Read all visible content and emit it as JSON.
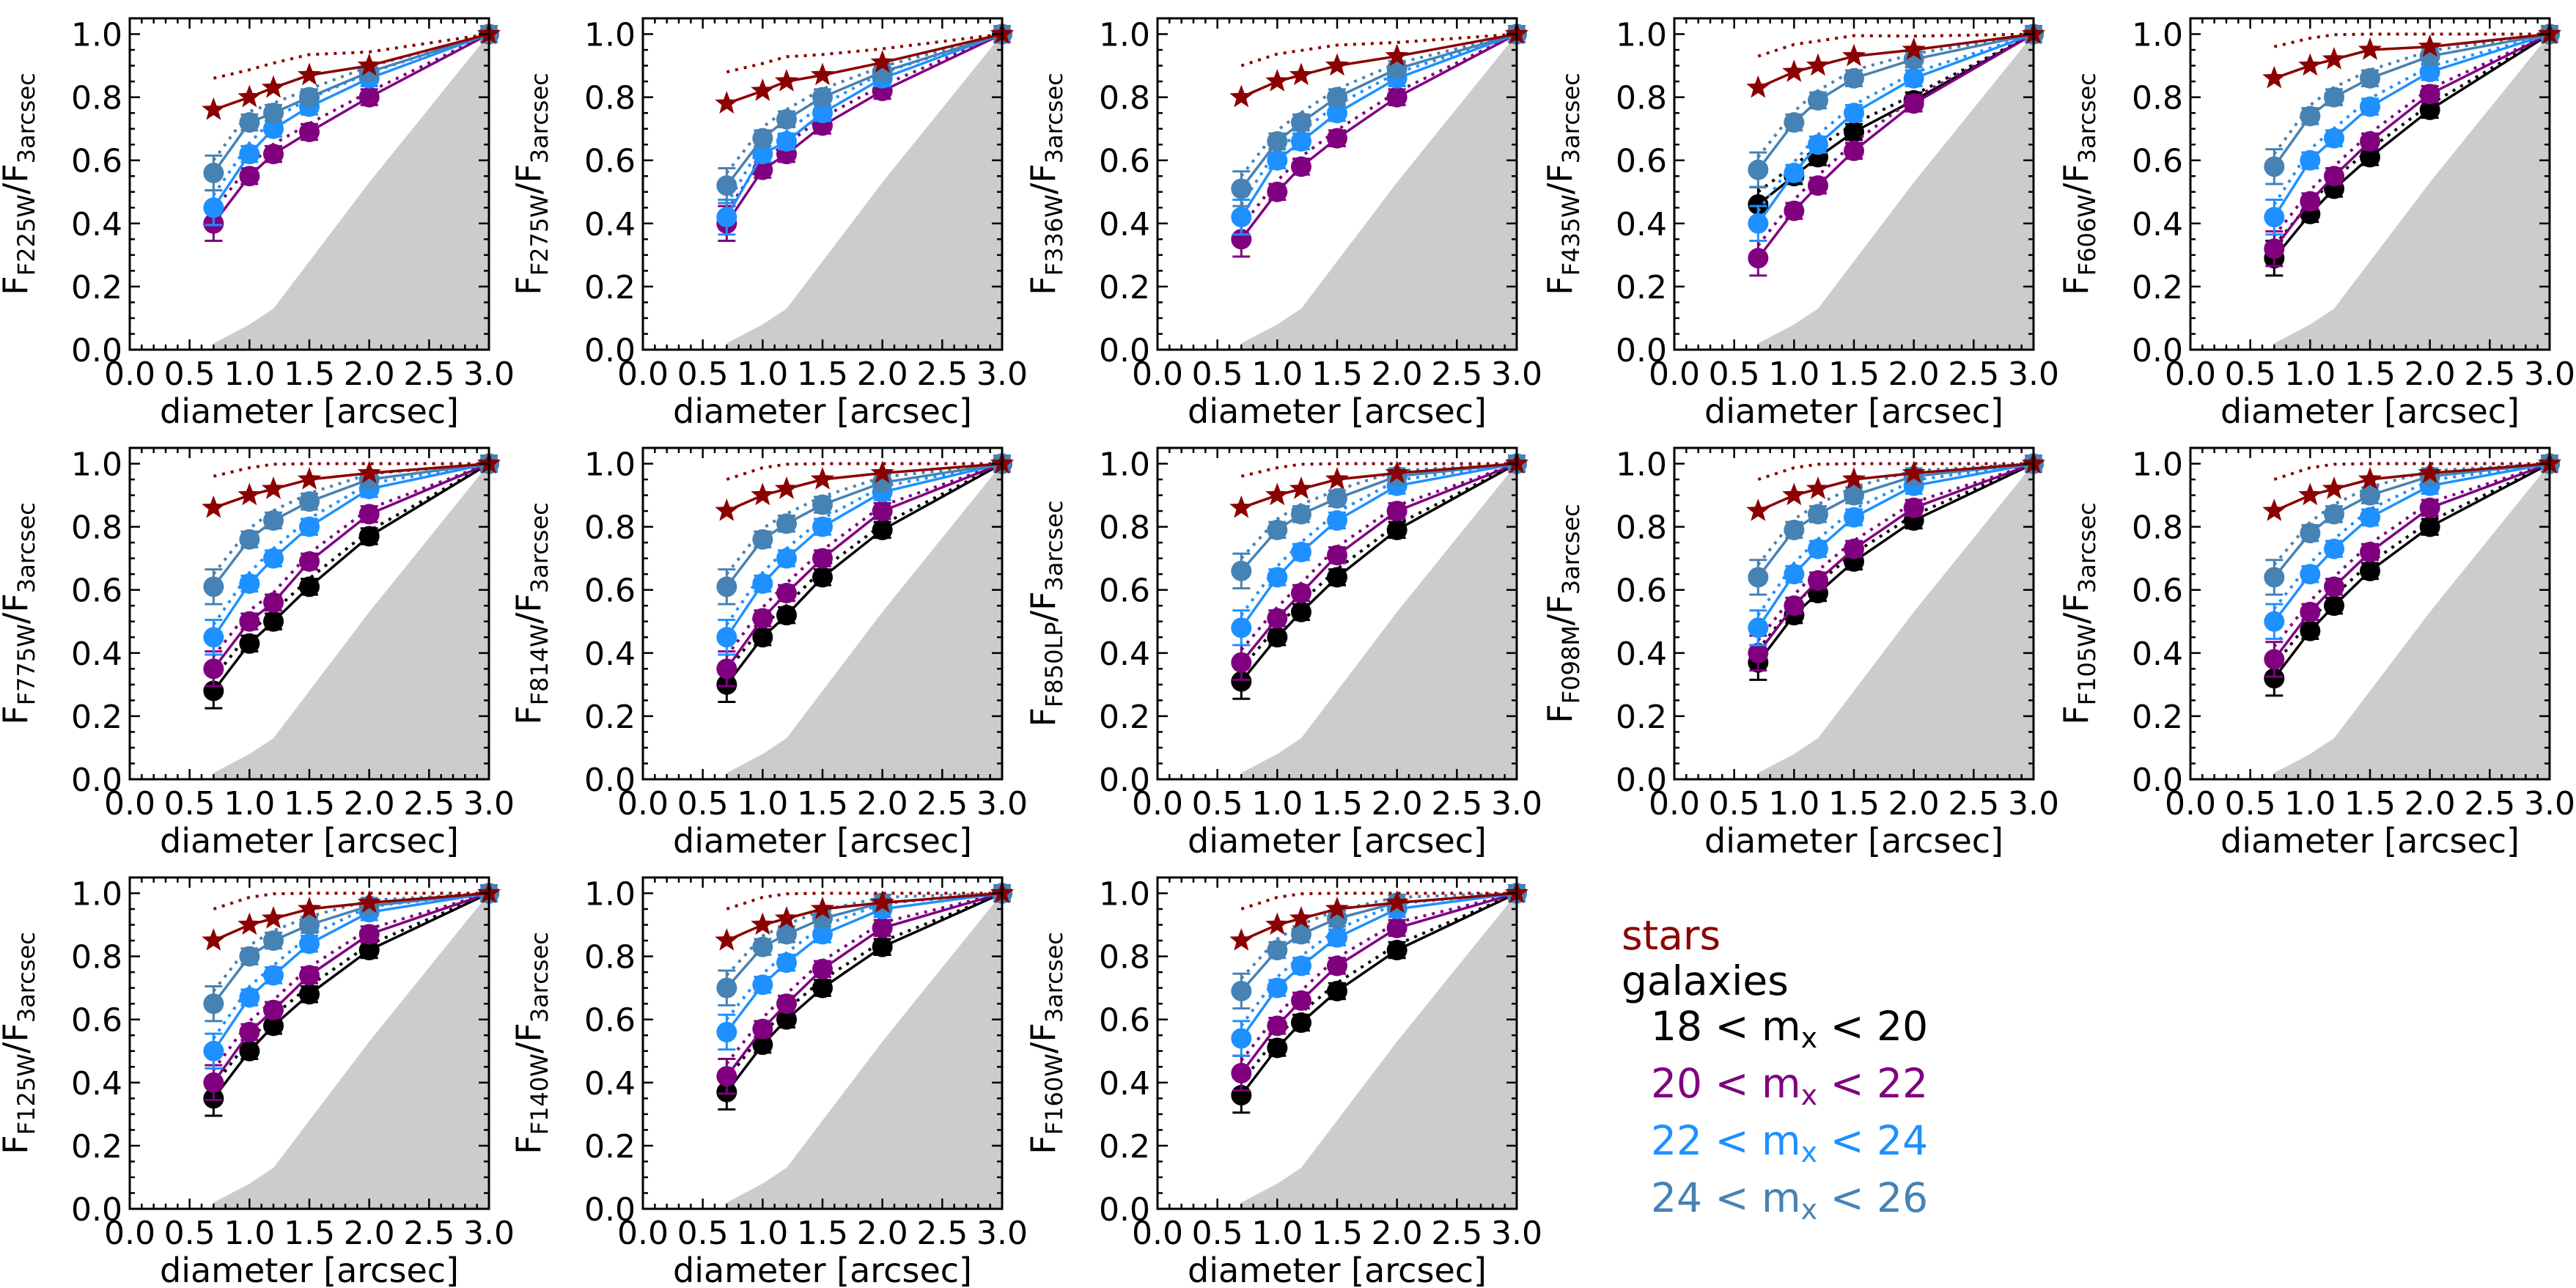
{
  "figure": {
    "x_label": "diameter [arcsec]",
    "x_tick_labels": [
      "0.0",
      "0.5",
      "1.0",
      "1.5",
      "2.0",
      "2.5",
      "3.0"
    ],
    "y_tick_labels": [
      "0.0",
      "0.2",
      "0.4",
      "0.6",
      "0.8",
      "1.0"
    ],
    "y_label_prefix": "F",
    "y_label_denominator": "3arcsec"
  },
  "legend": {
    "stars": "stars",
    "galaxies": "galaxies",
    "bins": [
      {
        "pre": "18 < m",
        "sub": "x",
        "post": " < 20",
        "color": "#000000"
      },
      {
        "pre": "20 < m",
        "sub": "x",
        "post": " < 22",
        "color": "#800080"
      },
      {
        "pre": "22 < m",
        "sub": "x",
        "post": " < 24",
        "color": "#1e90ff"
      },
      {
        "pre": "24 < m",
        "sub": "x",
        "post": " < 26",
        "color": "#4682b4"
      }
    ]
  },
  "colors": {
    "stars": "#8b0000",
    "bright": "#000000",
    "mid": "#800080",
    "faint": "#1e90ff",
    "faintest": "#4682b4",
    "psf_region": "#cccccc"
  },
  "chart_data": {
    "type": "line",
    "title": "",
    "xlabel": "diameter [arcsec]",
    "ylabel": "F_filter / F_3arcsec",
    "xlim": [
      0.0,
      3.0
    ],
    "ylim": [
      0.0,
      1.05
    ],
    "x": [
      0.7,
      1.0,
      1.2,
      1.5,
      2.0,
      3.0
    ],
    "shaded_region_top": {
      "x": [
        0.7,
        1.0,
        1.2,
        1.5,
        2.0,
        3.0
      ],
      "y": [
        0.02,
        0.08,
        0.13,
        0.28,
        0.53,
        1.0
      ]
    },
    "panels": [
      {
        "filter": "F225W",
        "stars": [
          0.76,
          0.8,
          0.83,
          0.87,
          0.9,
          1.0
        ],
        "mag18_20": null,
        "mag20_22": [
          0.4,
          0.55,
          0.62,
          0.69,
          0.8,
          1.0
        ],
        "mag22_24": [
          0.45,
          0.62,
          0.7,
          0.77,
          0.86,
          1.0
        ],
        "mag24_26": [
          0.56,
          0.72,
          0.75,
          0.8,
          0.88,
          1.0
        ]
      },
      {
        "filter": "F275W",
        "stars": [
          0.78,
          0.82,
          0.85,
          0.87,
          0.91,
          1.0
        ],
        "mag18_20": null,
        "mag20_22": [
          0.4,
          0.57,
          0.62,
          0.71,
          0.82,
          1.0
        ],
        "mag22_24": [
          0.42,
          0.62,
          0.66,
          0.75,
          0.86,
          1.0
        ],
        "mag24_26": [
          0.52,
          0.67,
          0.73,
          0.8,
          0.88,
          1.0
        ]
      },
      {
        "filter": "F336W",
        "stars": [
          0.8,
          0.85,
          0.87,
          0.9,
          0.93,
          1.0
        ],
        "mag18_20": null,
        "mag20_22": [
          0.35,
          0.5,
          0.58,
          0.67,
          0.8,
          1.0
        ],
        "mag22_24": [
          0.42,
          0.6,
          0.66,
          0.75,
          0.86,
          1.0
        ],
        "mag24_26": [
          0.51,
          0.66,
          0.72,
          0.8,
          0.89,
          1.0
        ]
      },
      {
        "filter": "F435W",
        "stars": [
          0.83,
          0.88,
          0.9,
          0.93,
          0.95,
          1.0
        ],
        "mag18_20": [
          0.46,
          0.55,
          0.61,
          0.69,
          0.79,
          1.0
        ],
        "mag20_22": [
          0.29,
          0.44,
          0.52,
          0.63,
          0.78,
          1.0
        ],
        "mag22_24": [
          0.4,
          0.56,
          0.65,
          0.75,
          0.86,
          1.0
        ],
        "mag24_26": [
          0.57,
          0.72,
          0.79,
          0.86,
          0.92,
          1.0
        ]
      },
      {
        "filter": "F606W",
        "stars": [
          0.86,
          0.9,
          0.92,
          0.95,
          0.96,
          1.0
        ],
        "mag18_20": [
          0.29,
          0.43,
          0.51,
          0.61,
          0.76,
          1.0
        ],
        "mag20_22": [
          0.32,
          0.47,
          0.55,
          0.66,
          0.81,
          1.0
        ],
        "mag22_24": [
          0.42,
          0.6,
          0.67,
          0.77,
          0.88,
          1.0
        ],
        "mag24_26": [
          0.58,
          0.74,
          0.8,
          0.86,
          0.93,
          1.0
        ]
      },
      {
        "filter": "F775W",
        "stars": [
          0.86,
          0.9,
          0.92,
          0.95,
          0.97,
          1.0
        ],
        "mag18_20": [
          0.28,
          0.43,
          0.5,
          0.61,
          0.77,
          1.0
        ],
        "mag20_22": [
          0.35,
          0.5,
          0.56,
          0.69,
          0.84,
          1.0
        ],
        "mag22_24": [
          0.45,
          0.62,
          0.7,
          0.8,
          0.92,
          1.0
        ],
        "mag24_26": [
          0.61,
          0.76,
          0.82,
          0.88,
          0.95,
          1.0
        ]
      },
      {
        "filter": "F814W",
        "stars": [
          0.85,
          0.9,
          0.92,
          0.95,
          0.97,
          1.0
        ],
        "mag18_20": [
          0.3,
          0.45,
          0.52,
          0.64,
          0.79,
          1.0
        ],
        "mag20_22": [
          0.35,
          0.51,
          0.59,
          0.7,
          0.85,
          1.0
        ],
        "mag22_24": [
          0.45,
          0.62,
          0.7,
          0.8,
          0.91,
          1.0
        ],
        "mag24_26": [
          0.61,
          0.76,
          0.81,
          0.87,
          0.94,
          1.0
        ]
      },
      {
        "filter": "F850LP",
        "stars": [
          0.86,
          0.9,
          0.92,
          0.95,
          0.97,
          1.0
        ],
        "mag18_20": [
          0.31,
          0.45,
          0.53,
          0.64,
          0.79,
          1.0
        ],
        "mag20_22": [
          0.37,
          0.51,
          0.59,
          0.71,
          0.85,
          1.0
        ],
        "mag22_24": [
          0.48,
          0.64,
          0.72,
          0.82,
          0.93,
          1.0
        ],
        "mag24_26": [
          0.66,
          0.79,
          0.84,
          0.89,
          0.96,
          1.0
        ]
      },
      {
        "filter": "F098M",
        "stars": [
          0.85,
          0.9,
          0.92,
          0.95,
          0.97,
          1.0
        ],
        "mag18_20": [
          0.37,
          0.52,
          0.59,
          0.69,
          0.82,
          1.0
        ],
        "mag20_22": [
          0.4,
          0.55,
          0.63,
          0.73,
          0.86,
          1.0
        ],
        "mag22_24": [
          0.48,
          0.65,
          0.73,
          0.83,
          0.93,
          1.0
        ],
        "mag24_26": [
          0.64,
          0.79,
          0.84,
          0.9,
          0.96,
          1.0
        ]
      },
      {
        "filter": "F105W",
        "stars": [
          0.85,
          0.9,
          0.92,
          0.95,
          0.97,
          1.0
        ],
        "mag18_20": [
          0.32,
          0.47,
          0.55,
          0.66,
          0.8,
          1.0
        ],
        "mag20_22": [
          0.38,
          0.53,
          0.61,
          0.72,
          0.86,
          1.0
        ],
        "mag22_24": [
          0.5,
          0.65,
          0.73,
          0.83,
          0.93,
          1.0
        ],
        "mag24_26": [
          0.64,
          0.78,
          0.84,
          0.9,
          0.96,
          1.0
        ]
      },
      {
        "filter": "F125W",
        "stars": [
          0.85,
          0.9,
          0.92,
          0.95,
          0.97,
          1.0
        ],
        "mag18_20": [
          0.35,
          0.5,
          0.58,
          0.68,
          0.82,
          1.0
        ],
        "mag20_22": [
          0.4,
          0.56,
          0.63,
          0.74,
          0.87,
          1.0
        ],
        "mag22_24": [
          0.5,
          0.67,
          0.74,
          0.84,
          0.94,
          1.0
        ],
        "mag24_26": [
          0.65,
          0.8,
          0.85,
          0.9,
          0.96,
          1.0
        ]
      },
      {
        "filter": "F140W",
        "stars": [
          0.85,
          0.9,
          0.92,
          0.95,
          0.97,
          1.0
        ],
        "mag18_20": [
          0.37,
          0.52,
          0.6,
          0.7,
          0.83,
          1.0
        ],
        "mag20_22": [
          0.42,
          0.57,
          0.65,
          0.76,
          0.89,
          1.0
        ],
        "mag22_24": [
          0.56,
          0.71,
          0.78,
          0.87,
          0.95,
          1.0
        ],
        "mag24_26": [
          0.7,
          0.83,
          0.87,
          0.92,
          0.97,
          1.0
        ]
      },
      {
        "filter": "F160W",
        "stars": [
          0.85,
          0.9,
          0.92,
          0.95,
          0.97,
          1.0
        ],
        "mag18_20": [
          0.36,
          0.51,
          0.59,
          0.69,
          0.82,
          1.0
        ],
        "mag20_22": [
          0.43,
          0.58,
          0.66,
          0.77,
          0.89,
          1.0
        ],
        "mag22_24": [
          0.54,
          0.7,
          0.77,
          0.86,
          0.95,
          1.0
        ],
        "mag24_26": [
          0.69,
          0.82,
          0.87,
          0.92,
          0.97,
          1.0
        ]
      }
    ]
  }
}
